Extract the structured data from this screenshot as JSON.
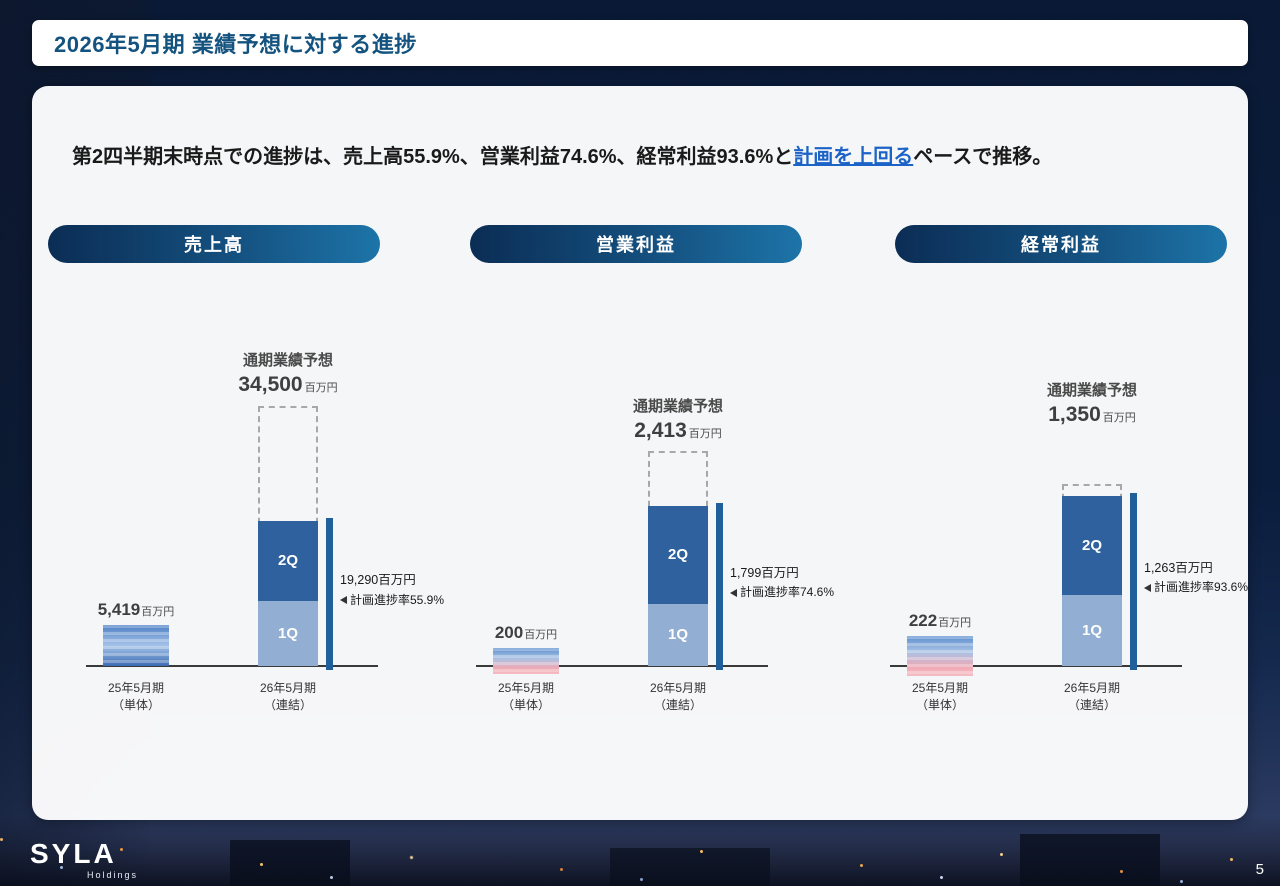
{
  "header": {
    "title": "2026年5月期 業績予想に対する進捗"
  },
  "summary": {
    "before_link": "第2四半期末時点での進捗は、売上高55.9%、営業利益74.6%、経常利益93.6%と",
    "link_text": "計画を上回る",
    "after_link": "ペースで推移。"
  },
  "footer": {
    "page_number": "5",
    "logo_text": "SYLA",
    "logo_sub": "Holdings"
  },
  "colors": {
    "q2_blue": "#2f619e",
    "q1_light_blue": "#92aed2",
    "progress_marker_blue": "#1f5f9a",
    "pill_gradient_dark": "#0b2d55",
    "pill_gradient_light": "#1d74a8",
    "link_blue": "#1c63c8",
    "title_blue": "#14537f",
    "prior_bar_pink": "#f0a9b4"
  },
  "chart_data": [
    {
      "type": "bar",
      "title": "売上高",
      "unit": "百万円",
      "forecast_label": "通期業績予想",
      "forecast_value": 34500,
      "forecast_value_label": "34,500",
      "bars": {
        "prior": {
          "x_label": "25年5月期\n（単体）",
          "value": 5419,
          "value_label": "5,419"
        },
        "current": {
          "x_label": "26年5月期\n（連結）",
          "total": 19290,
          "q2_label": "2Q",
          "q1_label": "1Q",
          "q1_value_est": 8600,
          "q2_value_est": 10690
        }
      },
      "annotation": {
        "line1": "19,290百万円",
        "line2": "計画進捗率55.9%"
      },
      "progress_pct": 55.9
    },
    {
      "type": "bar",
      "title": "営業利益",
      "unit": "百万円",
      "forecast_label": "通期業績予想",
      "forecast_value": 2413,
      "forecast_value_label": "2,413",
      "bars": {
        "prior": {
          "x_label": "25年5月期\n（単体）",
          "value": 200,
          "value_label": "200"
        },
        "current": {
          "x_label": "26年5月期\n（連結）",
          "total": 1799,
          "q2_label": "2Q",
          "q1_label": "1Q",
          "q1_value_est": 700,
          "q2_value_est": 1099
        }
      },
      "annotation": {
        "line1": "1,799百万円",
        "line2": "計画進捗率74.6%"
      },
      "progress_pct": 74.6
    },
    {
      "type": "bar",
      "title": "経常利益",
      "unit": "百万円",
      "forecast_label": "通期業績予想",
      "forecast_value": 1350,
      "forecast_value_label": "1,350",
      "bars": {
        "prior": {
          "x_label": "25年5月期\n（単体）",
          "value": 222,
          "value_label": "222"
        },
        "current": {
          "x_label": "26年5月期\n（連結）",
          "total": 1263,
          "q2_label": "2Q",
          "q1_label": "1Q",
          "q1_value_est": 530,
          "q2_value_est": 733
        }
      },
      "annotation": {
        "line1": "1,263百万円",
        "line2": "計画進捗率93.6%"
      },
      "progress_pct": 93.6
    }
  ]
}
